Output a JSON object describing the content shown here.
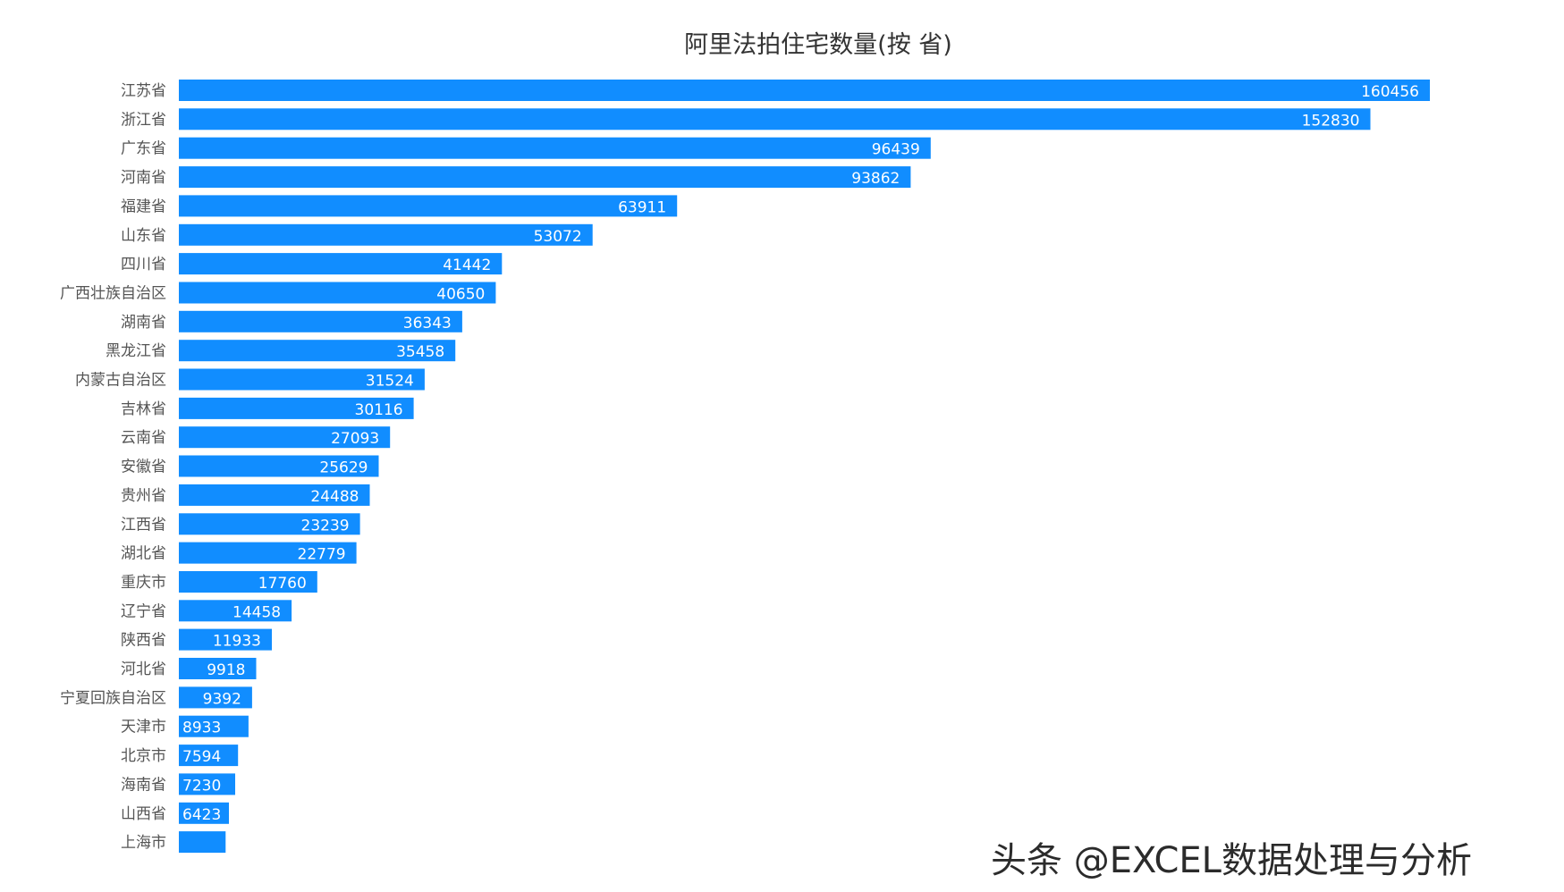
{
  "chart_data": {
    "type": "bar",
    "orientation": "horizontal",
    "title": "阿里法拍住宅数量(按 省)",
    "xlabel": "",
    "ylabel": "",
    "xlim": [
      0,
      160456
    ],
    "grid": false,
    "legend": "none",
    "bar_color": "#118DFF",
    "categories": [
      "江苏省",
      "浙江省",
      "广东省",
      "河南省",
      "福建省",
      "山东省",
      "四川省",
      "广西壮族自治区",
      "湖南省",
      "黑龙江省",
      "内蒙古自治区",
      "吉林省",
      "云南省",
      "安徽省",
      "贵州省",
      "江西省",
      "湖北省",
      "重庆市",
      "辽宁省",
      "陕西省",
      "河北省",
      "宁夏回族自治区",
      "天津市",
      "北京市",
      "海南省",
      "山西省",
      "上海市"
    ],
    "values": [
      160456,
      152830,
      96439,
      93862,
      63911,
      53072,
      41442,
      40650,
      36343,
      35458,
      31524,
      30116,
      27093,
      25629,
      24488,
      23239,
      22779,
      17760,
      14458,
      11933,
      9918,
      9392,
      8933,
      7594,
      7230,
      6423,
      6000
    ],
    "data_labels": [
      "160456",
      "152830",
      "96439",
      "93862",
      "63911",
      "53072",
      "41442",
      "40650",
      "36343",
      "35458",
      "31524",
      "30116",
      "27093",
      "25629",
      "24488",
      "23239",
      "22779",
      "17760",
      "14458",
      "11933",
      "9918",
      "9392",
      "8933",
      "7594",
      "7230",
      "6423",
      ""
    ]
  },
  "watermark": "头条 @EXCEL数据处理与分析"
}
